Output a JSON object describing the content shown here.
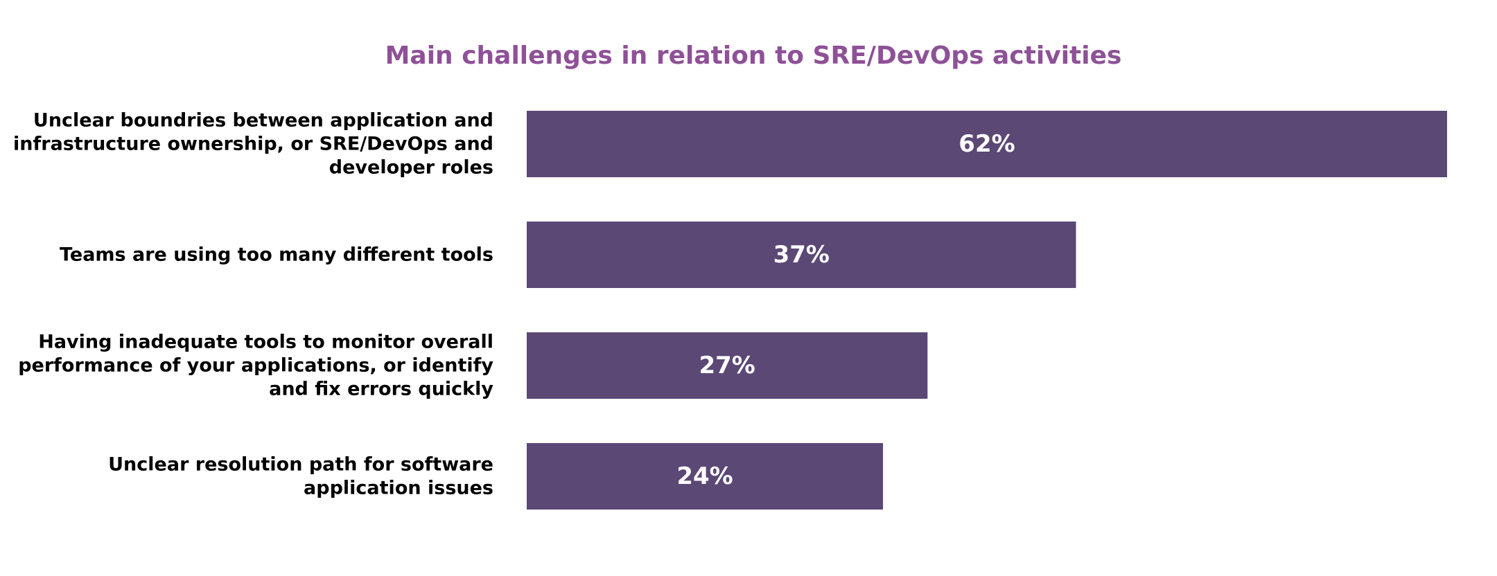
{
  "colors": {
    "title": "#8e5197",
    "bar": "#5b4875",
    "value_text": "#ffffff",
    "label_text": "#000000",
    "background": "#ffffff"
  },
  "chart_data": {
    "type": "bar",
    "orientation": "horizontal",
    "title": "Main challenges in relation to SRE/DevOps activities",
    "xlabel": "",
    "ylabel": "",
    "xlim": [
      0,
      62
    ],
    "grid": false,
    "legend": "none",
    "value_suffix": "%",
    "categories": [
      [
        "Unclear boundries between application and",
        "infrastructure ownership, or SRE/DevOps and",
        "developer roles"
      ],
      [
        "Teams are using too many different tools"
      ],
      [
        "Having inadequate tools to monitor overall",
        "performance of your applications, or identify",
        "and fix errors quickly"
      ],
      [
        "Unclear  resolution path for software",
        "application issues"
      ]
    ],
    "values": [
      62,
      37,
      27,
      24
    ]
  }
}
